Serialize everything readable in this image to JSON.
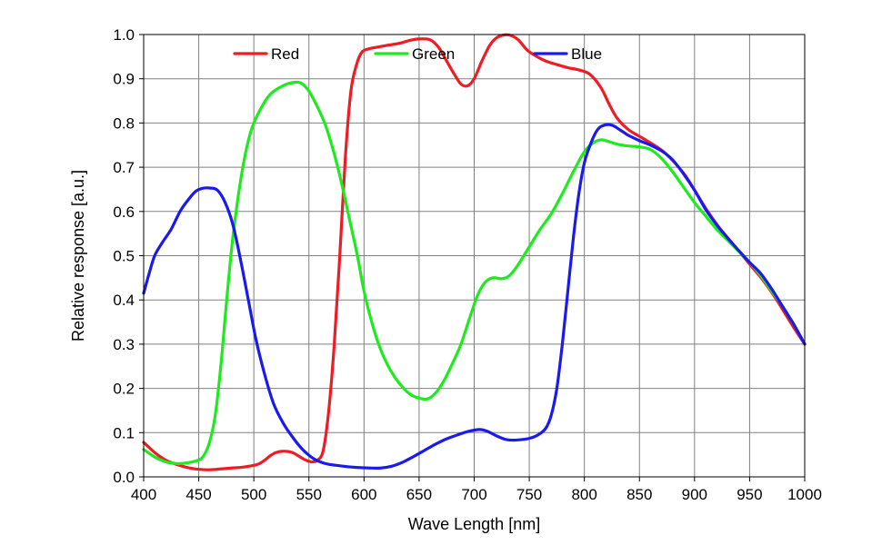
{
  "chart_data": {
    "type": "line",
    "xlabel": "Wave Length [nm]",
    "ylabel": "Relative response [a.u.]",
    "xlim": [
      400,
      1000
    ],
    "ylim": [
      0,
      1.0
    ],
    "grid": true,
    "legend_position": "top",
    "x_ticks": [
      "400",
      "450",
      "500",
      "550",
      "600",
      "650",
      "700",
      "750",
      "800",
      "850",
      "900",
      "950",
      "1000"
    ],
    "y_ticks": [
      "0.0",
      "0.1",
      "0.2",
      "0.3",
      "0.4",
      "0.5",
      "0.6",
      "0.7",
      "0.8",
      "0.9",
      "1.0"
    ],
    "series": [
      {
        "name": "Red",
        "color": "#ee1c25",
        "points": [
          [
            400,
            0.078
          ],
          [
            410,
            0.055
          ],
          [
            420,
            0.038
          ],
          [
            430,
            0.028
          ],
          [
            440,
            0.021
          ],
          [
            450,
            0.017
          ],
          [
            460,
            0.016
          ],
          [
            470,
            0.018
          ],
          [
            480,
            0.02
          ],
          [
            490,
            0.022
          ],
          [
            500,
            0.026
          ],
          [
            505,
            0.03
          ],
          [
            510,
            0.038
          ],
          [
            515,
            0.048
          ],
          [
            520,
            0.055
          ],
          [
            527,
            0.058
          ],
          [
            535,
            0.055
          ],
          [
            542,
            0.045
          ],
          [
            548,
            0.037
          ],
          [
            553,
            0.034
          ],
          [
            558,
            0.038
          ],
          [
            563,
            0.06
          ],
          [
            568,
            0.15
          ],
          [
            573,
            0.3
          ],
          [
            578,
            0.5
          ],
          [
            583,
            0.72
          ],
          [
            588,
            0.87
          ],
          [
            593,
            0.93
          ],
          [
            598,
            0.96
          ],
          [
            605,
            0.968
          ],
          [
            613,
            0.972
          ],
          [
            622,
            0.976
          ],
          [
            632,
            0.98
          ],
          [
            642,
            0.987
          ],
          [
            650,
            0.99
          ],
          [
            660,
            0.988
          ],
          [
            668,
            0.97
          ],
          [
            675,
            0.94
          ],
          [
            682,
            0.91
          ],
          [
            688,
            0.888
          ],
          [
            694,
            0.884
          ],
          [
            700,
            0.9
          ],
          [
            707,
            0.94
          ],
          [
            714,
            0.975
          ],
          [
            720,
            0.992
          ],
          [
            727,
            0.999
          ],
          [
            733,
            0.998
          ],
          [
            740,
            0.988
          ],
          [
            748,
            0.965
          ],
          [
            757,
            0.95
          ],
          [
            765,
            0.94
          ],
          [
            775,
            0.932
          ],
          [
            785,
            0.925
          ],
          [
            795,
            0.92
          ],
          [
            805,
            0.91
          ],
          [
            815,
            0.88
          ],
          [
            823,
            0.84
          ],
          [
            830,
            0.81
          ],
          [
            840,
            0.785
          ],
          [
            852,
            0.767
          ],
          [
            862,
            0.752
          ],
          [
            872,
            0.735
          ],
          [
            882,
            0.71
          ],
          [
            892,
            0.68
          ],
          [
            902,
            0.64
          ],
          [
            912,
            0.6
          ],
          [
            922,
            0.565
          ],
          [
            932,
            0.535
          ],
          [
            942,
            0.505
          ],
          [
            952,
            0.475
          ],
          [
            962,
            0.445
          ],
          [
            972,
            0.41
          ],
          [
            982,
            0.37
          ],
          [
            992,
            0.33
          ],
          [
            1000,
            0.3
          ]
        ]
      },
      {
        "name": "Green",
        "color": "#1eeb1e",
        "points": [
          [
            400,
            0.062
          ],
          [
            410,
            0.045
          ],
          [
            420,
            0.034
          ],
          [
            430,
            0.03
          ],
          [
            440,
            0.032
          ],
          [
            450,
            0.038
          ],
          [
            455,
            0.05
          ],
          [
            460,
            0.08
          ],
          [
            465,
            0.14
          ],
          [
            470,
            0.25
          ],
          [
            475,
            0.39
          ],
          [
            480,
            0.52
          ],
          [
            485,
            0.62
          ],
          [
            490,
            0.7
          ],
          [
            495,
            0.76
          ],
          [
            500,
            0.8
          ],
          [
            508,
            0.84
          ],
          [
            515,
            0.865
          ],
          [
            522,
            0.878
          ],
          [
            530,
            0.888
          ],
          [
            537,
            0.892
          ],
          [
            543,
            0.89
          ],
          [
            550,
            0.872
          ],
          [
            557,
            0.84
          ],
          [
            565,
            0.795
          ],
          [
            573,
            0.73
          ],
          [
            580,
            0.66
          ],
          [
            587,
            0.58
          ],
          [
            594,
            0.5
          ],
          [
            600,
            0.42
          ],
          [
            607,
            0.35
          ],
          [
            614,
            0.295
          ],
          [
            621,
            0.255
          ],
          [
            628,
            0.225
          ],
          [
            636,
            0.2
          ],
          [
            643,
            0.185
          ],
          [
            650,
            0.178
          ],
          [
            657,
            0.176
          ],
          [
            664,
            0.187
          ],
          [
            672,
            0.215
          ],
          [
            680,
            0.255
          ],
          [
            688,
            0.3
          ],
          [
            696,
            0.36
          ],
          [
            703,
            0.41
          ],
          [
            710,
            0.44
          ],
          [
            717,
            0.45
          ],
          [
            725,
            0.448
          ],
          [
            732,
            0.455
          ],
          [
            740,
            0.48
          ],
          [
            750,
            0.52
          ],
          [
            760,
            0.56
          ],
          [
            770,
            0.595
          ],
          [
            780,
            0.64
          ],
          [
            790,
            0.69
          ],
          [
            800,
            0.735
          ],
          [
            808,
            0.755
          ],
          [
            815,
            0.762
          ],
          [
            822,
            0.758
          ],
          [
            830,
            0.752
          ],
          [
            840,
            0.748
          ],
          [
            850,
            0.746
          ],
          [
            860,
            0.74
          ],
          [
            870,
            0.72
          ],
          [
            880,
            0.69
          ],
          [
            890,
            0.655
          ],
          [
            900,
            0.62
          ],
          [
            910,
            0.59
          ],
          [
            920,
            0.56
          ],
          [
            930,
            0.535
          ],
          [
            940,
            0.51
          ],
          [
            950,
            0.485
          ],
          [
            960,
            0.455
          ],
          [
            970,
            0.42
          ],
          [
            980,
            0.385
          ],
          [
            990,
            0.345
          ],
          [
            1000,
            0.3
          ]
        ]
      },
      {
        "name": "Blue",
        "color": "#1a1aee",
        "points": [
          [
            400,
            0.415
          ],
          [
            405,
            0.46
          ],
          [
            410,
            0.5
          ],
          [
            417,
            0.53
          ],
          [
            425,
            0.56
          ],
          [
            433,
            0.6
          ],
          [
            440,
            0.625
          ],
          [
            447,
            0.645
          ],
          [
            453,
            0.652
          ],
          [
            460,
            0.653
          ],
          [
            467,
            0.648
          ],
          [
            474,
            0.62
          ],
          [
            481,
            0.57
          ],
          [
            488,
            0.49
          ],
          [
            495,
            0.4
          ],
          [
            502,
            0.31
          ],
          [
            510,
            0.23
          ],
          [
            518,
            0.165
          ],
          [
            527,
            0.12
          ],
          [
            536,
            0.087
          ],
          [
            545,
            0.06
          ],
          [
            555,
            0.04
          ],
          [
            565,
            0.03
          ],
          [
            575,
            0.026
          ],
          [
            585,
            0.023
          ],
          [
            595,
            0.021
          ],
          [
            605,
            0.02
          ],
          [
            615,
            0.02
          ],
          [
            625,
            0.024
          ],
          [
            635,
            0.033
          ],
          [
            645,
            0.046
          ],
          [
            655,
            0.06
          ],
          [
            665,
            0.074
          ],
          [
            675,
            0.086
          ],
          [
            685,
            0.095
          ],
          [
            695,
            0.103
          ],
          [
            705,
            0.107
          ],
          [
            712,
            0.103
          ],
          [
            720,
            0.093
          ],
          [
            728,
            0.085
          ],
          [
            735,
            0.083
          ],
          [
            742,
            0.084
          ],
          [
            750,
            0.087
          ],
          [
            758,
            0.095
          ],
          [
            765,
            0.11
          ],
          [
            770,
            0.14
          ],
          [
            775,
            0.2
          ],
          [
            780,
            0.3
          ],
          [
            785,
            0.42
          ],
          [
            790,
            0.54
          ],
          [
            795,
            0.64
          ],
          [
            800,
            0.71
          ],
          [
            806,
            0.755
          ],
          [
            812,
            0.785
          ],
          [
            818,
            0.795
          ],
          [
            825,
            0.795
          ],
          [
            832,
            0.785
          ],
          [
            840,
            0.772
          ],
          [
            850,
            0.76
          ],
          [
            860,
            0.75
          ],
          [
            870,
            0.737
          ],
          [
            880,
            0.717
          ],
          [
            890,
            0.685
          ],
          [
            900,
            0.648
          ],
          [
            910,
            0.605
          ],
          [
            920,
            0.57
          ],
          [
            930,
            0.54
          ],
          [
            940,
            0.512
          ],
          [
            950,
            0.485
          ],
          [
            960,
            0.46
          ],
          [
            970,
            0.425
          ],
          [
            980,
            0.385
          ],
          [
            990,
            0.345
          ],
          [
            1000,
            0.3
          ]
        ]
      }
    ]
  }
}
